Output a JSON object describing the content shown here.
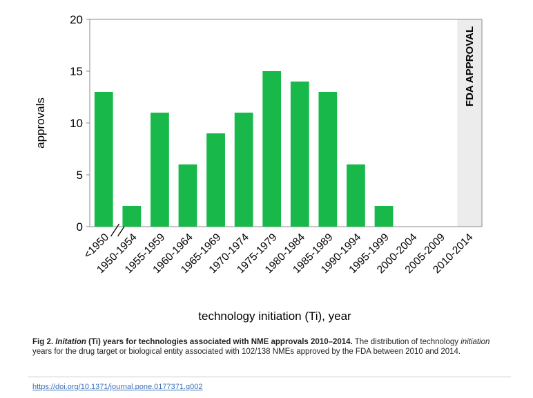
{
  "chart_data": {
    "type": "bar",
    "categories": [
      "<1950",
      "1950-1954",
      "1955-1959",
      "1960-1964",
      "1965-1969",
      "1970-1974",
      "1975-1979",
      "1980-1984",
      "1985-1989",
      "1990-1994",
      "1995-1999",
      "2000-2004",
      "2005-2009",
      "2010-2014"
    ],
    "values": [
      13,
      2,
      11,
      6,
      9,
      11,
      15,
      14,
      13,
      6,
      2,
      0,
      0,
      0
    ],
    "ylabel": "approvals",
    "xlabel": "technology initiation (Ti), year",
    "ylim": [
      0,
      20
    ],
    "yticks": [
      0,
      5,
      10,
      15,
      20
    ],
    "bar_color": "#18b94a",
    "highlight_category": "2010-2014",
    "highlight_label": "FDA APPROVAL",
    "highlight_color": "#ececec",
    "axis_break_after": "<1950",
    "grid": false
  },
  "caption": {
    "fig_label": "Fig 2.",
    "title_italic": "Initation",
    "title_rest": " (Ti) years for technologies associated with NME approvals 2010–2014.",
    "body_1": " The distribution of technology ",
    "body_italic": "initiation",
    "body_2": " years for the drug target or biological entity associated with 102/138 NMEs approved by the FDA between 2010 and 2014."
  },
  "doi": "https://doi.org/10.1371/journal.pone.0177371.g002"
}
